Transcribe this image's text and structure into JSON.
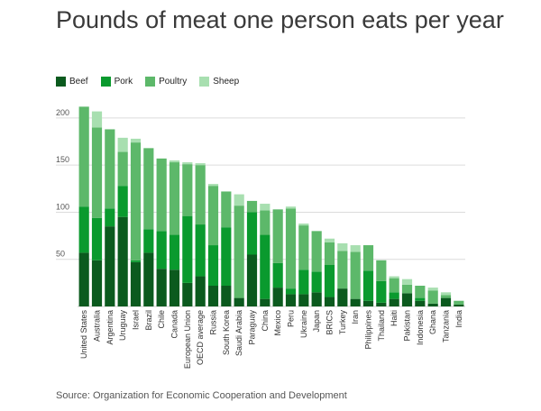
{
  "chart_data": {
    "type": "bar",
    "stacked": true,
    "title": "Pounds of meat one person eats per year",
    "xlabel": "",
    "ylabel": "",
    "ylim": [
      0,
      220
    ],
    "yticks": [
      50,
      100,
      150,
      200
    ],
    "grid": true,
    "legend_position": "top-left",
    "source": "Source: Organization for Economic Cooperation and Development",
    "categories": [
      "United States",
      "Australia",
      "Argentina",
      "Uruguay",
      "Israel",
      "Brazil",
      "Chile",
      "Canada",
      "European Union",
      "OECD average",
      "Russia",
      "South Korea",
      "Saudi Arabia",
      "Paraguay",
      "China",
      "Mexico",
      "Peru",
      "Ukraine",
      "Japan",
      "BRICS",
      "Turkey",
      "Iran",
      "Philippines",
      "Thailand",
      "Haiti",
      "Pakistan",
      "Indonesia",
      "Ghana",
      "Tanzania",
      "India"
    ],
    "series": [
      {
        "name": "Beef",
        "color": "#0b5a1e",
        "values": [
          57,
          49,
          85,
          95,
          47,
          57,
          40,
          39,
          25,
          32,
          22,
          22,
          9,
          55,
          8,
          20,
          13,
          13,
          15,
          10,
          19,
          8,
          6,
          4,
          8,
          14,
          6,
          3,
          9,
          2
        ]
      },
      {
        "name": "Pork",
        "color": "#0a9a2e",
        "values": [
          49,
          45,
          19,
          33,
          2,
          25,
          40,
          37,
          71,
          55,
          43,
          62,
          0,
          45,
          68,
          26,
          6,
          26,
          22,
          34,
          0,
          0,
          32,
          23,
          7,
          0,
          3,
          0,
          0,
          0
        ]
      },
      {
        "name": "Poultry",
        "color": "#5db86a",
        "values": [
          106,
          96,
          84,
          36,
          125,
          86,
          77,
          77,
          55,
          63,
          63,
          38,
          98,
          12,
          26,
          57,
          85,
          47,
          43,
          24,
          40,
          50,
          27,
          22,
          15,
          9,
          13,
          14,
          3,
          4
        ]
      },
      {
        "name": "Sheep",
        "color": "#a8dfb0",
        "values": [
          0,
          17,
          0,
          15,
          4,
          0,
          0,
          2,
          2,
          2,
          2,
          0,
          12,
          0,
          7,
          0,
          2,
          2,
          0,
          4,
          8,
          7,
          0,
          0,
          2,
          6,
          0,
          3,
          3,
          0
        ]
      }
    ]
  },
  "legend": [
    {
      "label": "Beef",
      "color": "#0b5a1e"
    },
    {
      "label": "Pork",
      "color": "#0a9a2e"
    },
    {
      "label": "Poultry",
      "color": "#5db86a"
    },
    {
      "label": "Sheep",
      "color": "#a8dfb0"
    }
  ]
}
